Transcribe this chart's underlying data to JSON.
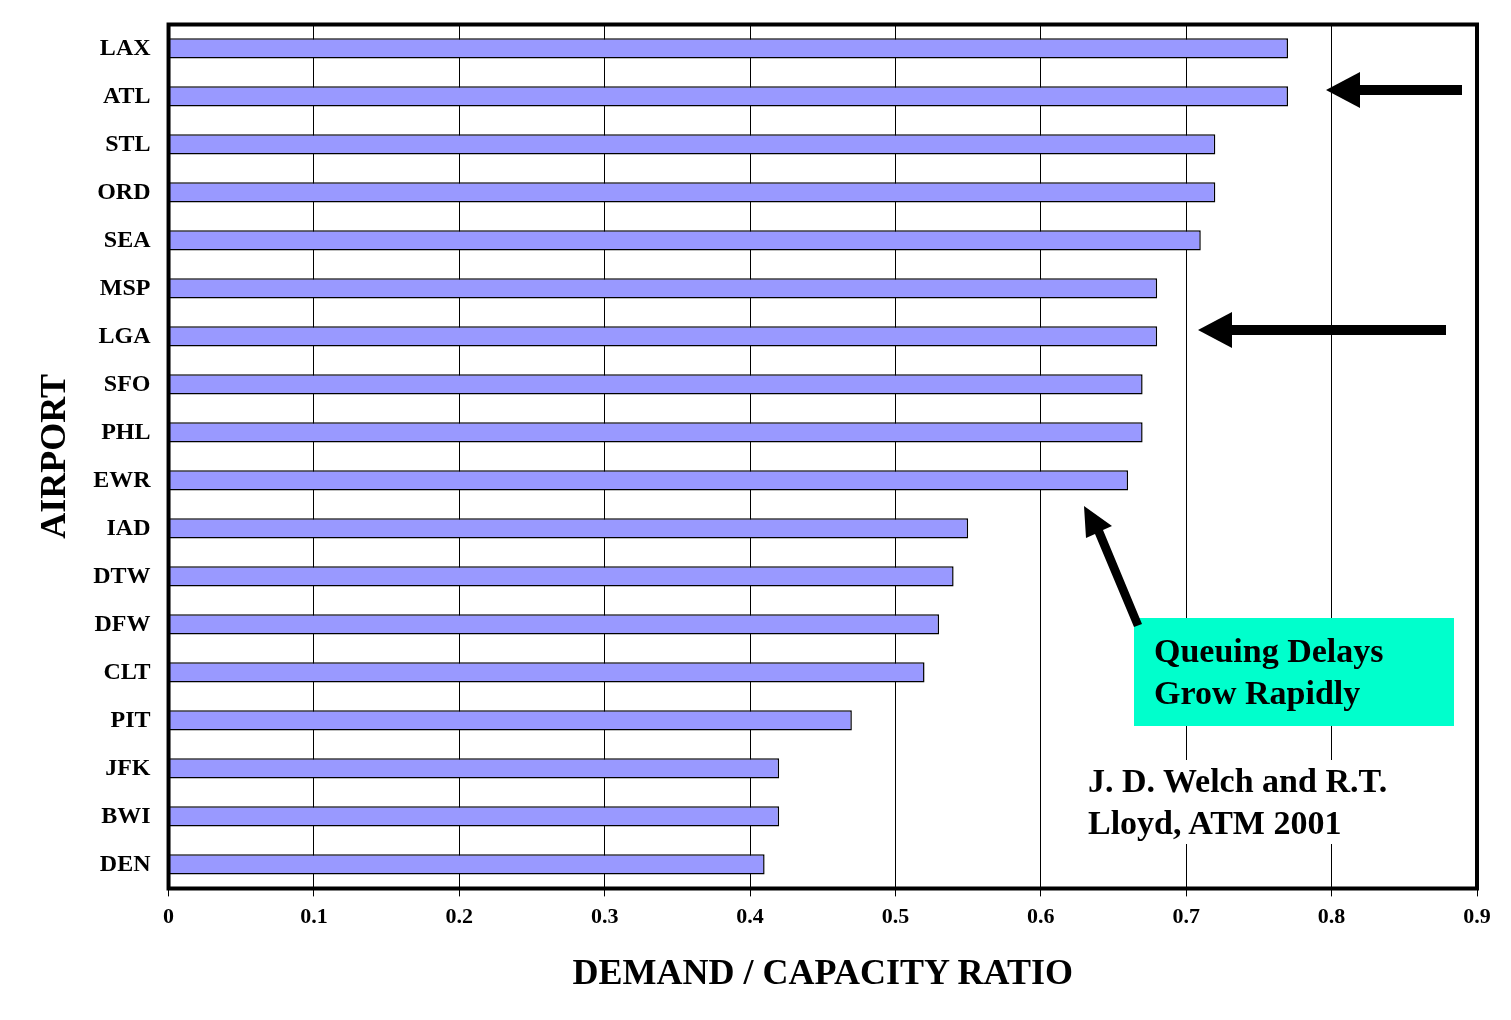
{
  "chart_data": {
    "type": "bar",
    "orientation": "horizontal",
    "xlabel": "DEMAND / CAPACITY RATIO",
    "ylabel": "AIRPORT",
    "categories": [
      "LAX",
      "ATL",
      "STL",
      "ORD",
      "SEA",
      "MSP",
      "LGA",
      "SFO",
      "PHL",
      "EWR",
      "IAD",
      "DTW",
      "DFW",
      "CLT",
      "PIT",
      "JFK",
      "BWI",
      "DEN"
    ],
    "values": [
      0.77,
      0.77,
      0.72,
      0.72,
      0.71,
      0.68,
      0.68,
      0.67,
      0.67,
      0.66,
      0.55,
      0.54,
      0.53,
      0.52,
      0.47,
      0.42,
      0.42,
      0.41
    ],
    "color": "#9999ff",
    "xlim": [
      0,
      0.9
    ],
    "xticks": [
      0,
      0.1,
      0.2,
      0.3,
      0.4,
      0.5,
      0.6,
      0.7,
      0.8,
      0.9
    ],
    "grid": "x",
    "legend": false,
    "annotations": [
      "Queuing Delays Grow Rapidly",
      "J. D. Welch and R.T. Lloyd, ATM 2001"
    ]
  }
}
